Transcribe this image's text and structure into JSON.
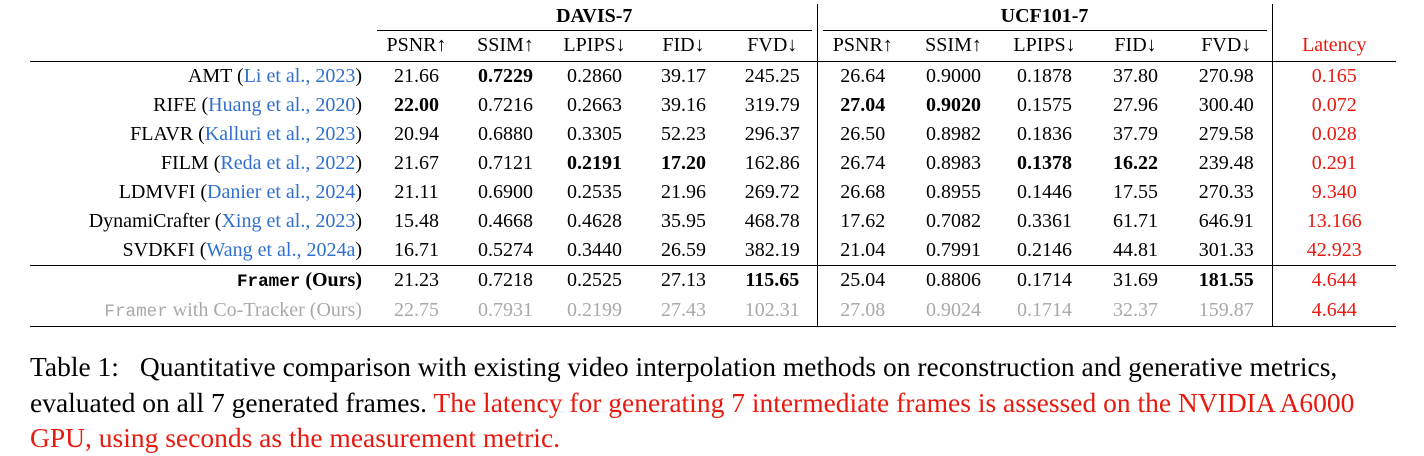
{
  "colors": {
    "red": "#e8190f",
    "blue": "#3170d0",
    "gray": "#a9a9a9"
  },
  "table": {
    "groups": [
      {
        "label": "DAVIS-7"
      },
      {
        "label": "UCF101-7"
      }
    ],
    "metric_headers": [
      "PSNR↑",
      "SSIM↑",
      "LPIPS↓",
      "FID↓",
      "FVD↓",
      "PSNR↑",
      "SSIM↑",
      "LPIPS↓",
      "FID↓",
      "FVD↓"
    ],
    "latency_header": "Latency",
    "rows": [
      {
        "method": {
          "name": "AMT",
          "cite": "Li et al., 2023"
        },
        "values": [
          "21.66",
          "0.7229",
          "0.2860",
          "39.17",
          "245.25",
          "26.64",
          "0.9000",
          "0.1878",
          "37.80",
          "270.98"
        ],
        "bold": [
          1
        ],
        "latency": "0.165",
        "cls": ""
      },
      {
        "method": {
          "name": "RIFE",
          "cite": "Huang et al., 2020"
        },
        "values": [
          "22.00",
          "0.7216",
          "0.2663",
          "39.16",
          "319.79",
          "27.04",
          "0.9020",
          "0.1575",
          "27.96",
          "300.40"
        ],
        "bold": [
          0,
          5,
          6
        ],
        "latency": "0.072",
        "cls": ""
      },
      {
        "method": {
          "name": "FLAVR",
          "cite": "Kalluri et al., 2023"
        },
        "values": [
          "20.94",
          "0.6880",
          "0.3305",
          "52.23",
          "296.37",
          "26.50",
          "0.8982",
          "0.1836",
          "37.79",
          "279.58"
        ],
        "bold": [],
        "latency": "0.028",
        "cls": ""
      },
      {
        "method": {
          "name": "FILM",
          "cite": "Reda et al., 2022"
        },
        "values": [
          "21.67",
          "0.7121",
          "0.2191",
          "17.20",
          "162.86",
          "26.74",
          "0.8983",
          "0.1378",
          "16.22",
          "239.48"
        ],
        "bold": [
          2,
          3,
          7,
          8
        ],
        "latency": "0.291",
        "cls": ""
      },
      {
        "method": {
          "name": "LDMVFI",
          "cite": "Danier et al., 2024"
        },
        "values": [
          "21.11",
          "0.6900",
          "0.2535",
          "21.96",
          "269.72",
          "26.68",
          "0.8955",
          "0.1446",
          "17.55",
          "270.33"
        ],
        "bold": [],
        "latency": "9.340",
        "cls": ""
      },
      {
        "method": {
          "name": "DynamiCrafter",
          "cite": "Xing et al., 2023"
        },
        "values": [
          "15.48",
          "0.4668",
          "0.4628",
          "35.95",
          "468.78",
          "17.62",
          "0.7082",
          "0.3361",
          "61.71",
          "646.91"
        ],
        "bold": [],
        "latency": "13.166",
        "cls": ""
      },
      {
        "method": {
          "name": "SVDKFI",
          "cite": "Wang et al., 2024a"
        },
        "values": [
          "16.71",
          "0.5274",
          "0.3440",
          "26.59",
          "382.19",
          "21.04",
          "0.7991",
          "0.2146",
          "44.81",
          "301.33"
        ],
        "bold": [],
        "latency": "42.923",
        "cls": ""
      },
      {
        "method": {
          "mono": "Framer",
          "rest": " (Ours)"
        },
        "values": [
          "21.23",
          "0.7218",
          "0.2525",
          "27.13",
          "115.65",
          "25.04",
          "0.8806",
          "0.1714",
          "31.69",
          "181.55"
        ],
        "bold": [
          4,
          9
        ],
        "latency": "4.644",
        "cls": "ours"
      },
      {
        "method": {
          "mono": "Framer",
          "rest": " with Co-Tracker (Ours)"
        },
        "values": [
          "22.75",
          "0.7931",
          "0.2199",
          "27.43",
          "102.31",
          "27.08",
          "0.9024",
          "0.1714",
          "32.37",
          "159.87"
        ],
        "bold": [],
        "latency": "4.644",
        "cls": "gray"
      }
    ]
  },
  "caption": {
    "label": "Table 1:",
    "black": "Quantitative comparison with existing video interpolation methods on reconstruction and generative metrics, evaluated on all 7 generated frames.",
    "red": "The latency for generating 7 intermediate frames is assessed on the NVIDIA A6000 GPU, using seconds as the measurement metric."
  }
}
